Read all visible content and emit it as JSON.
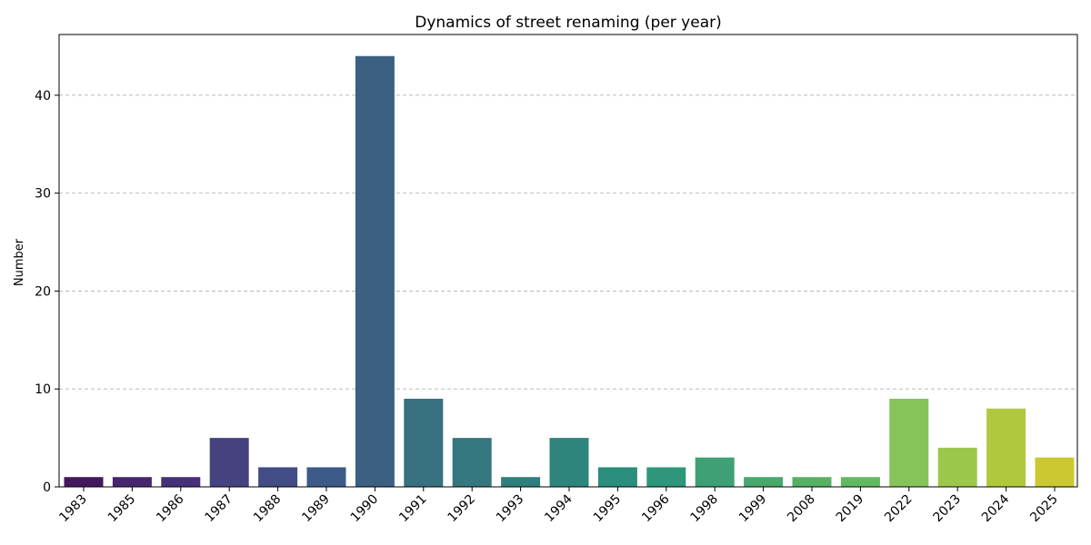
{
  "chart_data": {
    "type": "bar",
    "title": "Dynamics of street renaming (per year)",
    "xlabel": "",
    "ylabel": "Number",
    "categories": [
      "1983",
      "1985",
      "1986",
      "1987",
      "1988",
      "1989",
      "1990",
      "1991",
      "1992",
      "1993",
      "1994",
      "1995",
      "1996",
      "1998",
      "1999",
      "2008",
      "2019",
      "2022",
      "2023",
      "2024",
      "2025"
    ],
    "values": [
      1,
      1,
      1,
      5,
      2,
      2,
      44,
      9,
      5,
      1,
      5,
      2,
      2,
      3,
      1,
      1,
      1,
      9,
      4,
      8,
      3
    ],
    "colors": [
      "#44185f",
      "#47266d",
      "#472f7a",
      "#46427f",
      "#424d85",
      "#3d5b88",
      "#3b6081",
      "#38717f",
      "#35777f",
      "#2e7f7d",
      "#2e857c",
      "#2b8d7b",
      "#2d967b",
      "#3ea074",
      "#48a86c",
      "#56b164",
      "#61ba5e",
      "#86c35a",
      "#9bc84a",
      "#b0c83d",
      "#cbc832"
    ],
    "yticks": [
      0,
      10,
      20,
      30,
      40
    ],
    "ylim": [
      0,
      46.2
    ],
    "grid": "y-dashed",
    "legend": "none"
  }
}
